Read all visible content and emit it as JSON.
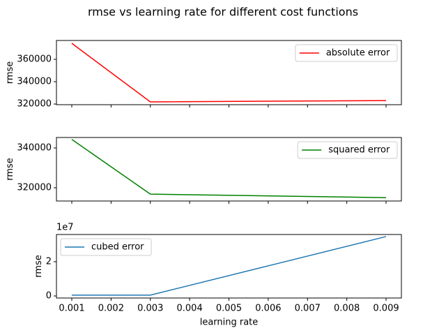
{
  "title": "rmse vs learning rate for different cost functions",
  "chart_data": [
    {
      "type": "line",
      "x": [
        0.001,
        0.003,
        0.009
      ],
      "series": [
        {
          "name": "absolute error",
          "color": "#ff0000",
          "values": [
            374400,
            321900,
            323100
          ]
        }
      ],
      "ylabel": "rmse",
      "xlim": [
        0.00061,
        0.00939
      ],
      "ylim": [
        319400,
        376900
      ],
      "xticks": [
        0.001,
        0.002,
        0.003,
        0.004,
        0.005,
        0.006,
        0.007,
        0.008,
        0.009
      ],
      "xtick_labels": false,
      "yticks": [
        320000,
        340000,
        360000
      ],
      "legend": "upper right"
    },
    {
      "type": "line",
      "x": [
        0.001,
        0.003,
        0.009
      ],
      "series": [
        {
          "name": "squared error",
          "color": "#008000",
          "values": [
            344300,
            316800,
            315000
          ]
        }
      ],
      "ylabel": "rmse",
      "xlim": [
        0.00061,
        0.00939
      ],
      "ylim": [
        313330,
        345260
      ],
      "xticks": [
        0.001,
        0.002,
        0.003,
        0.004,
        0.005,
        0.006,
        0.007,
        0.008,
        0.009
      ],
      "xtick_labels": false,
      "yticks": [
        320000,
        340000
      ],
      "legend": "upper right"
    },
    {
      "type": "line",
      "x": [
        0.001,
        0.003,
        0.009
      ],
      "series": [
        {
          "name": "cubed error",
          "color": "#1f77b4",
          "values": [
            500000,
            500000,
            34700000
          ]
        }
      ],
      "ylabel": "rmse",
      "xlabel": "learning rate",
      "xlim": [
        0.00061,
        0.00939
      ],
      "ylim": [
        -1200000,
        35900000
      ],
      "xticks": [
        0.001,
        0.002,
        0.003,
        0.004,
        0.005,
        0.006,
        0.007,
        0.008,
        0.009
      ],
      "xtick_labels": true,
      "yticks": [
        0,
        {
          "value": 20000000,
          "label": "2"
        }
      ],
      "y_offset_label": "1e7",
      "legend": "upper left"
    }
  ]
}
